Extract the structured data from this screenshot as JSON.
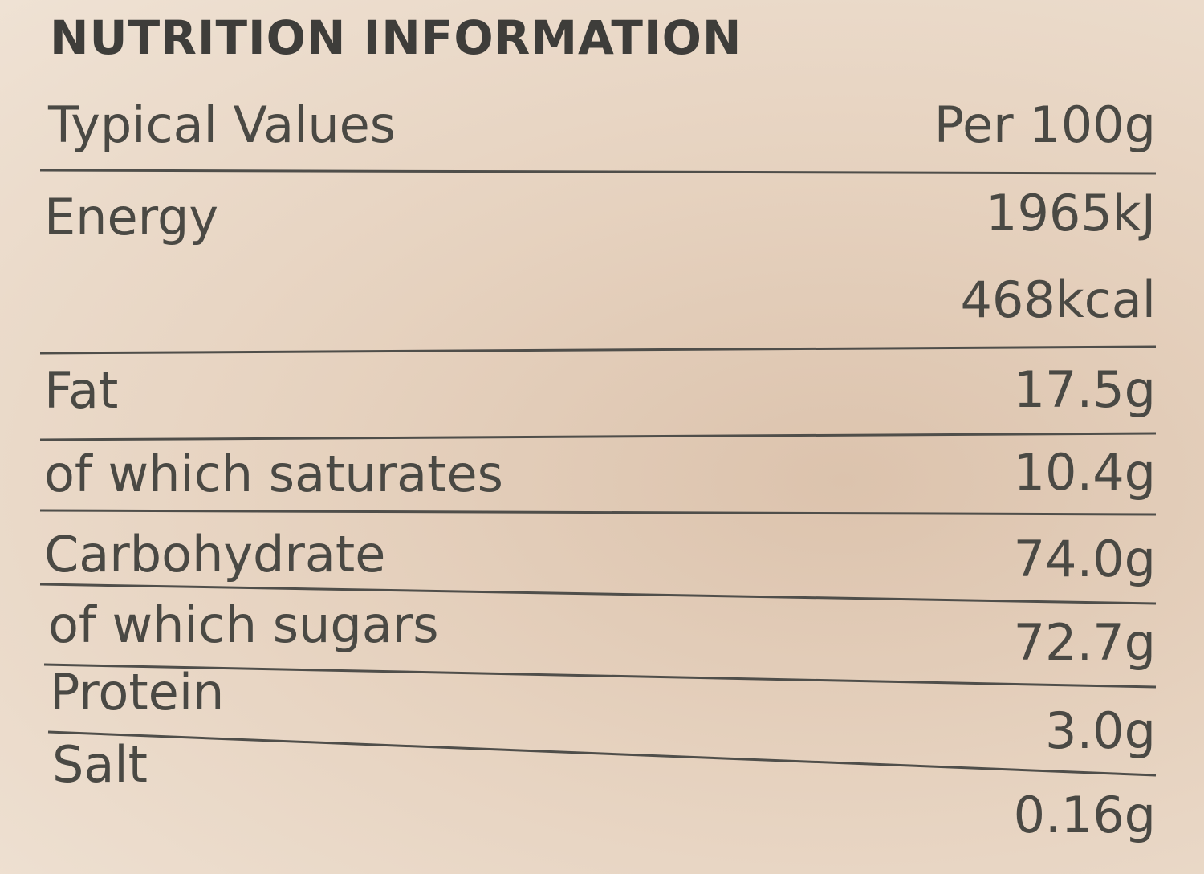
{
  "title": "NUTRITION INFORMATION",
  "header": {
    "label": "Typical Values",
    "value": "Per 100g"
  },
  "rows": [
    {
      "label": "Energy",
      "values": [
        "1965kJ",
        "468kcal"
      ]
    },
    {
      "label": "Fat",
      "values": [
        "17.5g"
      ]
    },
    {
      "label": "of which saturates",
      "values": [
        "10.4g"
      ]
    },
    {
      "label": "Carbohydrate",
      "values": [
        "74.0g"
      ]
    },
    {
      "label": "of which sugars",
      "values": [
        "72.7g"
      ]
    },
    {
      "label": "Protein",
      "values": [
        "3.0g"
      ]
    },
    {
      "label": "Salt",
      "values": [
        "0.16g"
      ]
    }
  ]
}
